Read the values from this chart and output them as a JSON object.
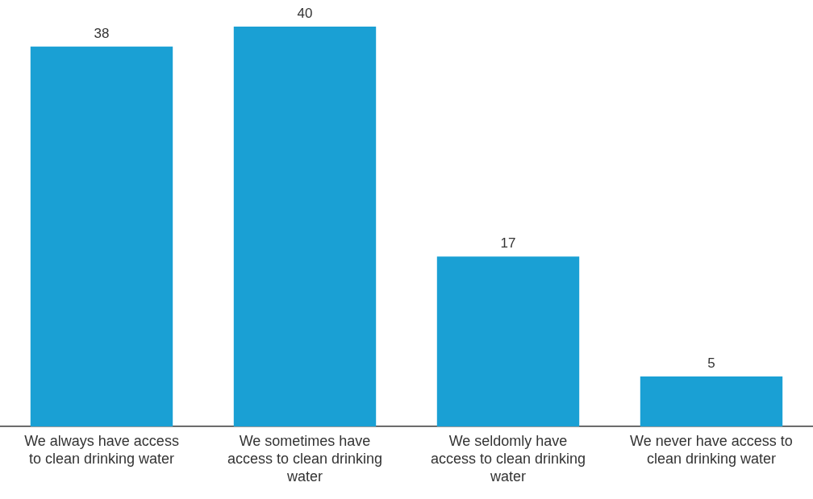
{
  "chart_data": {
    "type": "bar",
    "categories": [
      "We always have access to clean drinking water",
      "We sometimes have access to clean drinking water",
      "We seldomly have access to clean drinking water",
      "We never have access to clean drinking water"
    ],
    "values": [
      38,
      40,
      17,
      5
    ],
    "color": "#1aa0d4",
    "data_labels": true
  }
}
